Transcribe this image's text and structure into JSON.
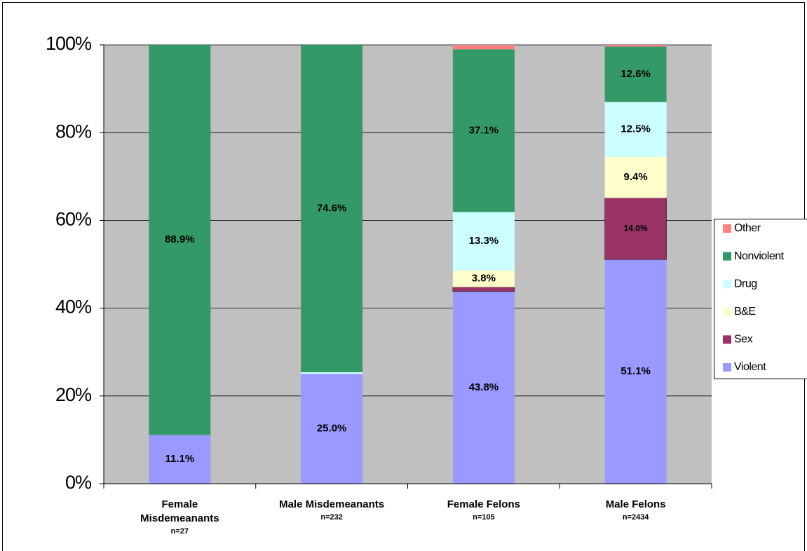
{
  "chart_data": {
    "type": "stacked_bar",
    "categories": [
      "Female Misdemeanants",
      "Male Misdemeanants",
      "Female Felons",
      "Male  Felons"
    ],
    "category_notes": [
      "n=27",
      "n=232",
      "n=105",
      "n=2434"
    ],
    "series": [
      {
        "name": "Violent",
        "color": "#9999ff",
        "values": [
          11.1,
          25.0,
          43.8,
          51.1
        ],
        "value_labels": [
          "11.1%",
          "25.0%",
          "43.8%",
          "51.1%"
        ]
      },
      {
        "name": "Sex",
        "color": "#993366",
        "values": [
          0,
          0,
          1.0,
          14.0
        ],
        "value_labels": [
          null,
          null,
          null,
          "14.0%"
        ]
      },
      {
        "name": "B&E",
        "color": "#ffffcc",
        "values": [
          0,
          0,
          3.8,
          9.4
        ],
        "value_labels": [
          null,
          null,
          "3.8%",
          "9.4%"
        ]
      },
      {
        "name": "Drug",
        "color": "#ccffff",
        "values": [
          0,
          0.4,
          13.3,
          12.5
        ],
        "value_labels": [
          null,
          null,
          "13.3%",
          "12.5%"
        ]
      },
      {
        "name": "Nonviolent",
        "color": "#339966",
        "values": [
          88.9,
          74.6,
          37.1,
          12.6
        ],
        "value_labels": [
          "88.9%",
          "74.6%",
          "37.1%",
          "12.6%"
        ]
      },
      {
        "name": "Other",
        "color": "#ff8080",
        "values": [
          0,
          0,
          1.0,
          0.4
        ],
        "value_labels": [
          null,
          null,
          null,
          null
        ]
      }
    ],
    "ylim": [
      0,
      100
    ],
    "yticks": [
      {
        "value": 0,
        "label": "0%"
      },
      {
        "value": 20,
        "label": "20%"
      },
      {
        "value": 40,
        "label": "40%"
      },
      {
        "value": 60,
        "label": "60%"
      },
      {
        "value": 80,
        "label": "80%"
      },
      {
        "value": 100,
        "label": "100%"
      }
    ],
    "grid": true,
    "legend": "right",
    "plot_background": "#c0c0c0"
  }
}
